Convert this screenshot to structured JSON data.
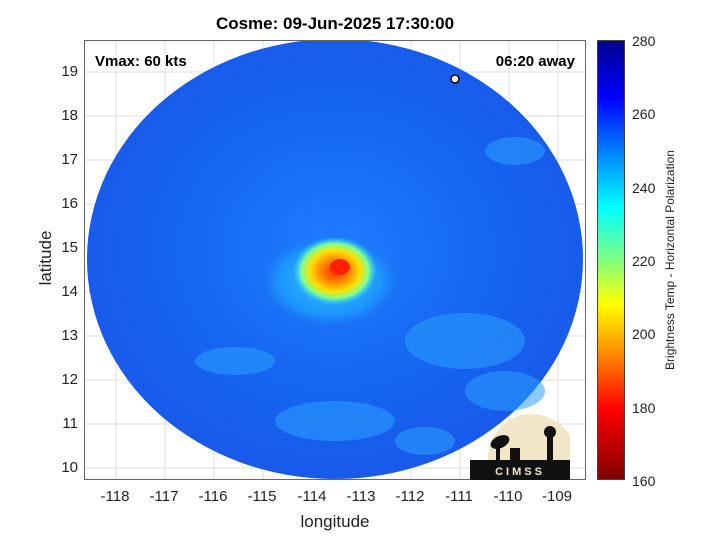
{
  "title": "Cosme: 09-Jun-2025 17:30:00",
  "annotations": {
    "vmax": "Vmax: 60 kts",
    "time_away": "06:20 away"
  },
  "axes": {
    "xlabel": "longitude",
    "ylabel": "latitude",
    "xticks": [
      "-118",
      "-117",
      "-116",
      "-115",
      "-114",
      "-113",
      "-112",
      "-111",
      "-110",
      "-109"
    ],
    "yticks": [
      "10",
      "11",
      "12",
      "13",
      "14",
      "15",
      "16",
      "17",
      "18",
      "19"
    ],
    "xlim": [
      -118.6,
      -108.4
    ],
    "ylim": [
      9.7,
      19.7
    ],
    "grid": "on"
  },
  "colorbar": {
    "label": "Brightness Temp - Horizontal Polarization",
    "ticks": [
      "280",
      "260",
      "240",
      "220",
      "200",
      "180",
      "160"
    ],
    "range": [
      160,
      280
    ]
  },
  "logo": {
    "text": "CIMSS"
  },
  "colors": {
    "background_field": "#1e6bef",
    "core_warm": "#ff3a00",
    "annulus": "#30d8ff"
  }
}
